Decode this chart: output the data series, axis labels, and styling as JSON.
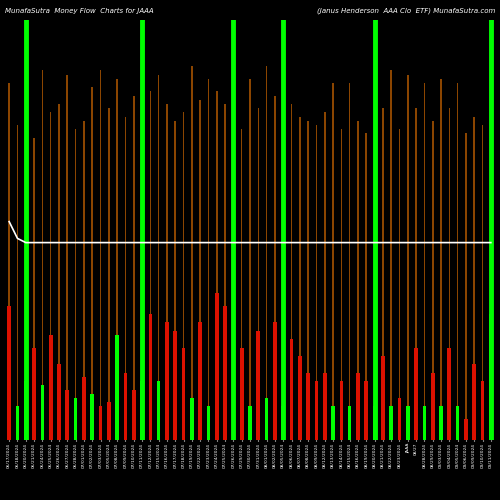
{
  "title_left": "MunafaSutra  Money Flow  Charts for JAAA",
  "title_right": "(Janus Henderson  AAA Clo  ETF) MunafaSutra.com",
  "bg_color": "#000000",
  "color_up": "#00ff00",
  "color_down": "#dd1100",
  "color_orange": "#8B4500",
  "color_line": "#ffffff",
  "labels": [
    "06/17/2024",
    "06/18/2024",
    "06/20/2024",
    "06/21/2024",
    "06/24/2024",
    "06/25/2024",
    "06/26/2024",
    "06/27/2024",
    "06/28/2024",
    "07/01/2024",
    "07/02/2024",
    "07/03/2024",
    "07/05/2024",
    "07/08/2024",
    "07/09/2024",
    "07/10/2024",
    "07/11/2024",
    "07/12/2024",
    "07/15/2024",
    "07/16/2024",
    "07/17/2024",
    "07/18/2024",
    "07/19/2024",
    "07/22/2024",
    "07/23/2024",
    "07/24/2024",
    "07/25/2024",
    "07/26/2024",
    "07/29/2024",
    "07/30/2024",
    "07/31/2024",
    "08/01/2024",
    "08/02/2024",
    "08/05/2024",
    "08/06/2024",
    "08/07/2024",
    "08/08/2024",
    "08/09/2024",
    "08/12/2024",
    "08/13/2024",
    "08/14/2024",
    "08/15/2024",
    "08/16/2024",
    "08/19/2024",
    "08/20/2024",
    "08/21/2024",
    "08/22/2024",
    "08/23/2024",
    "JAAA",
    "08/27",
    "08/28/2024",
    "08/29/2024",
    "09/03/2024",
    "09/04/2024",
    "09/05/2024",
    "09/06/2024",
    "09/09/2024",
    "09/10/2024",
    "09/11/2024"
  ],
  "n_bars": 59,
  "orange_heights": [
    85,
    75,
    85,
    72,
    88,
    78,
    80,
    87,
    74,
    76,
    84,
    88,
    79,
    86,
    77,
    82,
    90,
    83,
    87,
    80,
    76,
    78,
    89,
    81,
    86,
    83,
    80,
    88,
    74,
    86,
    79,
    89,
    82,
    90,
    80,
    77,
    76,
    75,
    78,
    85,
    74,
    85,
    76,
    73,
    83,
    79,
    88,
    74,
    87,
    79,
    85,
    76,
    86,
    79,
    85,
    73,
    77,
    75,
    95
  ],
  "colored_heights": [
    32,
    8,
    14,
    22,
    13,
    25,
    18,
    12,
    10,
    15,
    11,
    8,
    9,
    25,
    16,
    12,
    14,
    30,
    14,
    28,
    26,
    22,
    10,
    28,
    8,
    35,
    32,
    7,
    22,
    8,
    26,
    10,
    28,
    8,
    24,
    20,
    16,
    14,
    16,
    8,
    14,
    8,
    16,
    14,
    8,
    20,
    8,
    10,
    8,
    22,
    8,
    16,
    8,
    22,
    8,
    5,
    18,
    14,
    30
  ],
  "colored_types": [
    "red",
    "green",
    "green",
    "red",
    "green",
    "red",
    "red",
    "red",
    "green",
    "red",
    "green",
    "red",
    "red",
    "green",
    "red",
    "red",
    "green",
    "red",
    "green",
    "red",
    "red",
    "red",
    "green",
    "red",
    "green",
    "red",
    "red",
    "green",
    "red",
    "green",
    "red",
    "green",
    "red",
    "green",
    "red",
    "red",
    "red",
    "red",
    "red",
    "green",
    "red",
    "green",
    "red",
    "red",
    "green",
    "red",
    "green",
    "red",
    "green",
    "red",
    "green",
    "red",
    "green",
    "red",
    "green",
    "red",
    "red",
    "red",
    "green"
  ],
  "green_vline_indices": [
    2,
    16,
    27,
    33,
    44,
    58
  ],
  "white_line_y": [
    52,
    48,
    47,
    47,
    47,
    47,
    47,
    47,
    47,
    47,
    47,
    47,
    47,
    47,
    47,
    47,
    47,
    47,
    47,
    47,
    47,
    47,
    47,
    47,
    47,
    47,
    47,
    47,
    47,
    47,
    47,
    47,
    47,
    47,
    47,
    47,
    47,
    47,
    47,
    47,
    47,
    47,
    47,
    47,
    47,
    47,
    47,
    47,
    47,
    47,
    47,
    47,
    47,
    47,
    47,
    47,
    47,
    47,
    47
  ],
  "figsize": [
    5.0,
    5.0
  ],
  "dpi": 100
}
